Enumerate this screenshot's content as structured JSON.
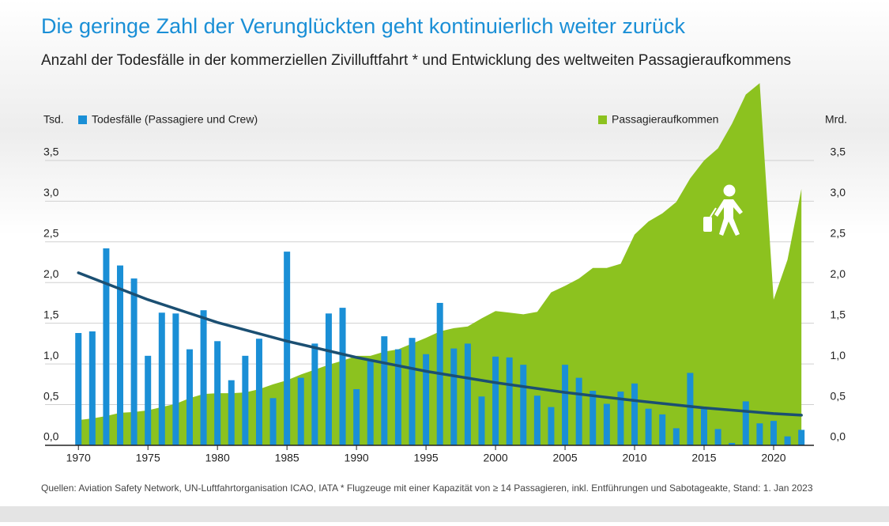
{
  "chart_data": {
    "type": "bar",
    "title": "Die geringe Zahl der Verunglückten geht kontinuierlich weiter zurück",
    "subtitle": "Anzahl der Todesfälle in der kommerziellen Zivilluftfahrt * und Entwicklung des weltweiten Passagieraufkommens",
    "y_label": "Tsd.",
    "y2_label": "Mrd.",
    "source": "Quellen: Aviation Safety Network, UN-Luftfahrtorganisation ICAO, IATA   * Flugzeuge mit einer Kapazität von ≥ 14 Passagieren, inkl. Entführungen und Sabotageakte, Stand: 1. Jan 2023",
    "x": [
      1970,
      1971,
      1972,
      1973,
      1974,
      1975,
      1976,
      1977,
      1978,
      1979,
      1980,
      1981,
      1982,
      1983,
      1984,
      1985,
      1986,
      1987,
      1988,
      1989,
      1990,
      1991,
      1992,
      1993,
      1994,
      1995,
      1996,
      1997,
      1998,
      1999,
      2000,
      2001,
      2002,
      2003,
      2004,
      2005,
      2006,
      2007,
      2008,
      2009,
      2010,
      2011,
      2012,
      2013,
      2014,
      2015,
      2016,
      2017,
      2018,
      2019,
      2020,
      2021,
      2022
    ],
    "series": [
      {
        "name": "Passagieraufkommen",
        "type": "area",
        "axis": "y2",
        "color": "#8cc21f",
        "values": [
          0.31,
          0.33,
          0.36,
          0.4,
          0.41,
          0.43,
          0.47,
          0.51,
          0.58,
          0.63,
          0.64,
          0.64,
          0.65,
          0.69,
          0.75,
          0.8,
          0.87,
          0.93,
          0.99,
          1.04,
          1.1,
          1.1,
          1.15,
          1.18,
          1.25,
          1.32,
          1.4,
          1.44,
          1.46,
          1.56,
          1.65,
          1.63,
          1.61,
          1.64,
          1.88,
          1.96,
          2.05,
          2.18,
          2.18,
          2.23,
          2.59,
          2.75,
          2.85,
          2.99,
          3.28,
          3.5,
          3.65,
          3.95,
          4.31,
          4.45,
          1.79,
          2.28,
          3.15
        ]
      },
      {
        "name": "Todesfälle (Passagiere und Crew)",
        "type": "bar",
        "color": "#1a8fd6",
        "values": [
          1.38,
          1.4,
          2.42,
          2.21,
          2.05,
          1.1,
          1.63,
          1.62,
          1.18,
          1.66,
          1.28,
          0.8,
          1.1,
          1.31,
          0.58,
          2.38,
          0.83,
          1.25,
          1.62,
          1.69,
          0.69,
          1.05,
          1.34,
          1.18,
          1.32,
          1.12,
          1.75,
          1.19,
          1.25,
          0.6,
          1.09,
          1.08,
          0.99,
          0.61,
          0.47,
          0.99,
          0.83,
          0.67,
          0.51,
          0.66,
          0.76,
          0.45,
          0.38,
          0.21,
          0.89,
          0.45,
          0.2,
          0.03,
          0.54,
          0.27,
          0.3,
          0.11,
          0.19
        ]
      }
    ],
    "trend": {
      "color": "#1b4f72",
      "x": [
        1970,
        1975,
        1980,
        1985,
        1990,
        1995,
        2000,
        2005,
        2010,
        2015,
        2020,
        2022
      ],
      "values": [
        2.12,
        1.79,
        1.51,
        1.28,
        1.08,
        0.91,
        0.77,
        0.65,
        0.55,
        0.46,
        0.39,
        0.37
      ]
    },
    "xlim": [
      1967.6,
      2022.9
    ],
    "xticks": [
      1970,
      1975,
      1980,
      1985,
      1990,
      1995,
      2000,
      2005,
      2010,
      2015,
      2020
    ],
    "ylim": [
      0,
      4.5
    ],
    "yticks": [
      {
        "value": 0,
        "label": "0,0"
      },
      {
        "value": 0.5,
        "label": "0,5"
      },
      {
        "value": 1,
        "label": "1,0"
      },
      {
        "value": 1.5,
        "label": "1,5"
      },
      {
        "value": 2,
        "label": "2,0"
      },
      {
        "value": 2.5,
        "label": "2,5"
      },
      {
        "value": 3,
        "label": "3,0"
      },
      {
        "value": 3.5,
        "label": "3,5"
      }
    ],
    "y2lim": [
      0,
      4.5
    ],
    "y2ticks": [
      {
        "value": 0,
        "label": "0,0"
      },
      {
        "value": 0.5,
        "label": "0,5"
      },
      {
        "value": 1,
        "label": "1,0"
      },
      {
        "value": 1.5,
        "label": "1,5"
      },
      {
        "value": 2,
        "label": "2,0"
      },
      {
        "value": 2.5,
        "label": "2,5"
      },
      {
        "value": 3,
        "label": "3,0"
      },
      {
        "value": 3.5,
        "label": "3,5"
      }
    ],
    "grid": true
  }
}
